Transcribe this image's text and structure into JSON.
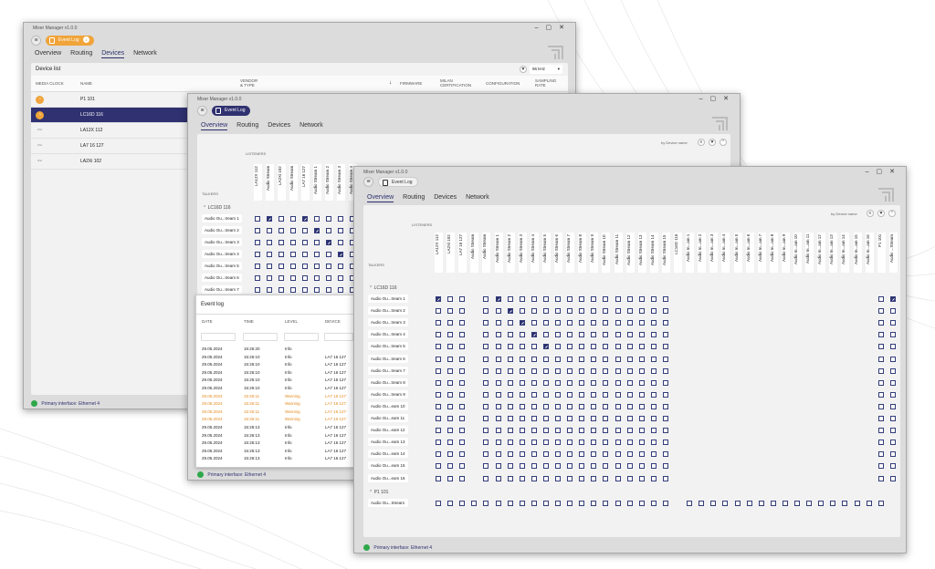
{
  "app_title": "Mixer Manager v1.0.0",
  "event_log_label": "Event Log",
  "event_log_badge": "1",
  "tabs": [
    "Overview",
    "Routing",
    "Devices",
    "Network"
  ],
  "status_text": "Primary interface:  Ethernet 4",
  "device_window": {
    "panel_title": "Device list",
    "rate_value": "96 kHz",
    "columns": {
      "media_clock": "MEDIA CLOCK",
      "name": "NAME",
      "vendor": "VENDOR\n& TYPE",
      "firmware": "FIRMWARE",
      "milan": "MILAN\nCERTIFICATION",
      "config": "CONFIGURATION",
      "sampling": "SAMPLING\nRATE"
    },
    "devices": [
      {
        "name": "P1 101",
        "selected": false
      },
      {
        "name": "LC16D 116",
        "selected": true
      },
      {
        "name": "LA12X 112",
        "selected": false
      },
      {
        "name": "LA7 16 127",
        "selected": false
      },
      {
        "name": "LA2Xi 102",
        "selected": false
      }
    ]
  },
  "routing_window": {
    "sort_label": "by Device name",
    "listeners_label": "LISTENERS",
    "talkers_label": "TALKERS",
    "listeners": [
      "LA12X 112",
      "Audio Stream",
      "LA2Xi 102",
      "Audio Stream",
      "LA7 16 127",
      "Audio Stream 1",
      "Audio Stream 2",
      "Audio Stream 3",
      "Audio Stream 4"
    ],
    "group": "LC16D 116",
    "talkers": [
      "Audio Ou...tream 1",
      "Audio Ou...tream 2",
      "Audio Ou...tream 3",
      "Audio Ou...tream 4",
      "Audio Ou...tream 5",
      "Audio Ou...tream 6",
      "Audio Ou...tream 7"
    ]
  },
  "event_log": {
    "title": "Event log",
    "columns": [
      "DATE",
      "TIME",
      "LEVEL",
      "DEVICE"
    ],
    "rows": [
      {
        "date": "29.05.2024",
        "time": "15:26:20",
        "level": "Info",
        "device": "",
        "warn": false
      },
      {
        "date": "29.05.2024",
        "time": "15:26:10",
        "level": "Info",
        "device": "LA7 16 127",
        "warn": false
      },
      {
        "date": "29.05.2024",
        "time": "15:26:10",
        "level": "Info",
        "device": "LA7 16 127",
        "warn": false
      },
      {
        "date": "29.05.2024",
        "time": "15:26:10",
        "level": "Info",
        "device": "LA7 16 127",
        "warn": false
      },
      {
        "date": "29.05.2024",
        "time": "15:26:10",
        "level": "Info",
        "device": "LA7 16 127",
        "warn": false
      },
      {
        "date": "29.05.2024",
        "time": "15:26:10",
        "level": "Info",
        "device": "LA7 16 127",
        "warn": false
      },
      {
        "date": "29.05.2024",
        "time": "15:26:11",
        "level": "Warning",
        "device": "LA7 16 127",
        "warn": true
      },
      {
        "date": "29.05.2024",
        "time": "15:26:11",
        "level": "Warning",
        "device": "LA7 16 127",
        "warn": true
      },
      {
        "date": "29.05.2024",
        "time": "15:26:11",
        "level": "Warning",
        "device": "LA7 16 127",
        "warn": true
      },
      {
        "date": "29.05.2024",
        "time": "15:26:11",
        "level": "Warning",
        "device": "LA7 16 127",
        "warn": true
      },
      {
        "date": "29.05.2024",
        "time": "15:26:13",
        "level": "Info",
        "device": "LA7 16 127",
        "warn": false
      },
      {
        "date": "29.05.2024",
        "time": "15:26:13",
        "level": "Info",
        "device": "LA7 16 127",
        "warn": false
      },
      {
        "date": "29.05.2024",
        "time": "15:26:13",
        "level": "Info",
        "device": "LA7 16 127",
        "warn": false
      },
      {
        "date": "29.05.2024",
        "time": "15:26:13",
        "level": "Info",
        "device": "LA7 16 127",
        "warn": false
      },
      {
        "date": "29.05.2024",
        "time": "15:26:13",
        "level": "Info",
        "device": "LA7 16 127",
        "warn": false
      }
    ]
  },
  "overview_window": {
    "sort_label": "by Device name",
    "listeners_label": "LISTENERS",
    "talkers_label": "TALKERS",
    "listeners": [
      "LA12X 112",
      "LA2Xi 102",
      "LA7 16 127",
      "Audio Stream",
      "Audio Stream",
      "Audio Stream 1",
      "Audio Stream 2",
      "Audio Stream 3",
      "Audio Stream 4",
      "Audio Stream 5",
      "Audio Stream 6",
      "Audio Stream 7",
      "Audio Stream 8",
      "Audio Stream 9",
      "Audio Stream 10",
      "Audio Stream 11",
      "Audio Stream 12",
      "Audio Stream 13",
      "Audio Stream 14",
      "Audio Stream 15",
      "LC16D 116",
      "Audio In...am 1",
      "Audio In...am 2",
      "Audio In...am 3",
      "Audio In...am 4",
      "Audio In...am 5",
      "Audio In...am 6",
      "Audio In...am 7",
      "Audio In...am 8",
      "Audio In...am 9",
      "Audio In...am 10",
      "Audio In...am 11",
      "Audio In...am 12",
      "Audio In...am 13",
      "Audio In...am 14",
      "Audio In...am 15",
      "Audio In...am 16",
      "P1 101",
      "Audio ...Stream"
    ],
    "groups": [
      {
        "name": "LC16D 116",
        "talkers": [
          "Audio Ou...tream 1",
          "Audio Ou...tream 2",
          "Audio Ou...tream 3",
          "Audio Ou...tream 4",
          "Audio Ou...tream 5",
          "Audio Ou...tream 6",
          "Audio Ou...tream 7",
          "Audio Ou...tream 8",
          "Audio Ou...tream 9",
          "Audio Ou...eam 10",
          "Audio Ou...eam 11",
          "Audio Ou...eam 12",
          "Audio Ou...eam 13",
          "Audio Ou...eam 14",
          "Audio Ou...eam 15",
          "Audio Ou...eam 16"
        ]
      },
      {
        "name": "P1 101",
        "talkers": [
          "Audio Ou...Stream"
        ]
      }
    ]
  }
}
